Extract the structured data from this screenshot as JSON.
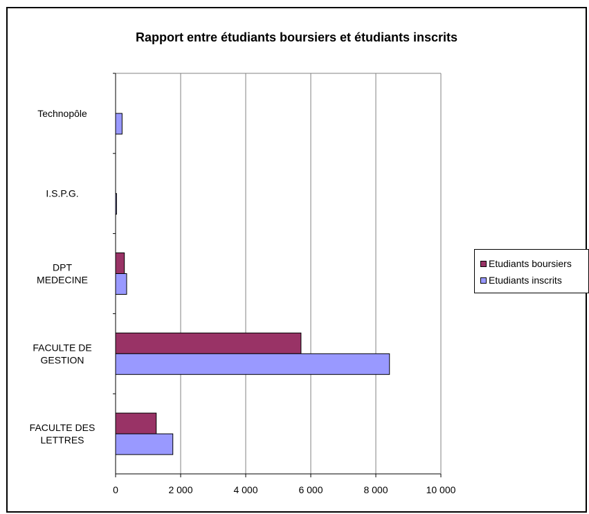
{
  "chart_data": {
    "type": "bar",
    "orientation": "horizontal",
    "title": "Rapport entre étudiants boursiers et étudiants inscrits",
    "categories": [
      "FACULTE DES LETTRES",
      "FACULTE DE GESTION",
      "DPT MEDECINE",
      "I.S.P.G.",
      "Technopôle"
    ],
    "category_label_lines": [
      [
        "FACULTE DES",
        "LETTRES"
      ],
      [
        "FACULTE DE",
        "GESTION"
      ],
      [
        "DPT",
        "MEDECINE"
      ],
      [
        "I.S.P.G."
      ],
      [
        "Technopôle"
      ]
    ],
    "series": [
      {
        "name": "Etudiants boursiers",
        "color": "#993366",
        "values": [
          1250,
          5700,
          270,
          0,
          0
        ]
      },
      {
        "name": "Etudiants inscrits",
        "color": "#9999ff",
        "values": [
          1760,
          8420,
          340,
          30,
          200
        ]
      }
    ],
    "xlim": [
      0,
      10000
    ],
    "xticks": [
      0,
      2000,
      4000,
      6000,
      8000,
      10000
    ],
    "xtick_labels": [
      "0",
      "2 000",
      "4 000",
      "6 000",
      "8 000",
      "10 000"
    ],
    "grid": "vertical",
    "legend_position": "right"
  }
}
